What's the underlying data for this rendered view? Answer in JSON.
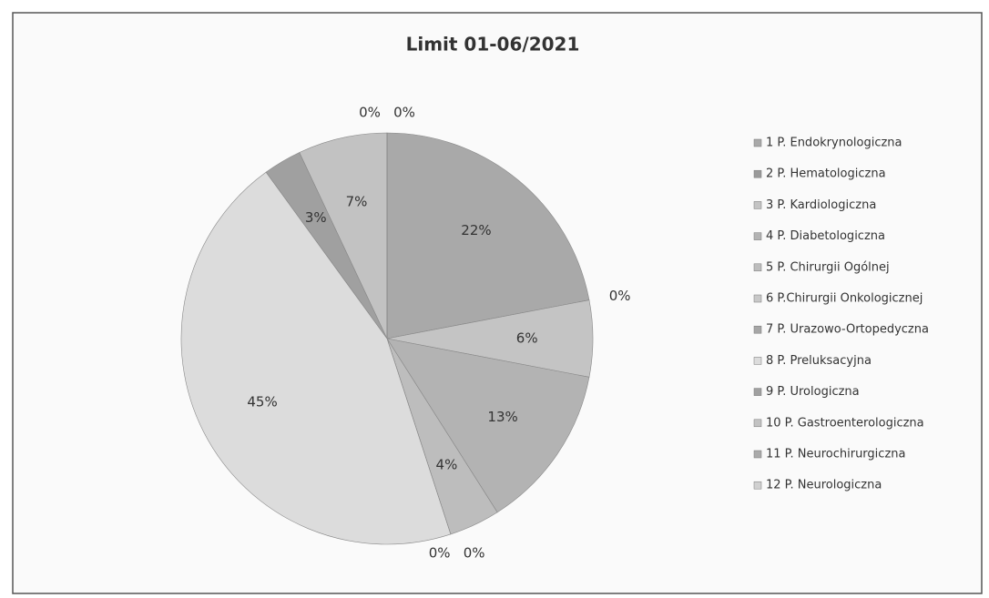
{
  "chart_data": {
    "type": "pie",
    "title": "Limit 01-06/2021",
    "categories": [
      "1 P. Endokrynologiczna",
      "2 P. Hematologiczna",
      "3 P. Kardiologiczna",
      "4 P. Diabetologiczna",
      "5 P. Chirurgii Ogólnej",
      "6 P.Chirurgii Onkologicznej",
      "7 P. Urazowo-Ortopedyczna",
      "8 P. Preluksacyjna",
      "9 P. Urologiczna",
      "10 P. Gastroenterologiczna",
      "11 P. Neurochirurgiczna",
      "12 P. Neurologiczna"
    ],
    "values": [
      22,
      0,
      6,
      13,
      4,
      0,
      0,
      45,
      3,
      7,
      0,
      0
    ],
    "value_labels": [
      "22%",
      "0%",
      "6%",
      "13%",
      "4%",
      "0%",
      "0%",
      "45%",
      "3%",
      "7%",
      "0%",
      "0%"
    ],
    "colors": [
      "#a9a9a9",
      "#9a9a9a",
      "#c4c4c4",
      "#b3b3b3",
      "#bdbdbd",
      "#c8c8c8",
      "#a6a6a6",
      "#dcdcdc",
      "#a0a0a0",
      "#c2c2c2",
      "#aaaaaa",
      "#d0d0d0"
    ],
    "legend": "right"
  }
}
